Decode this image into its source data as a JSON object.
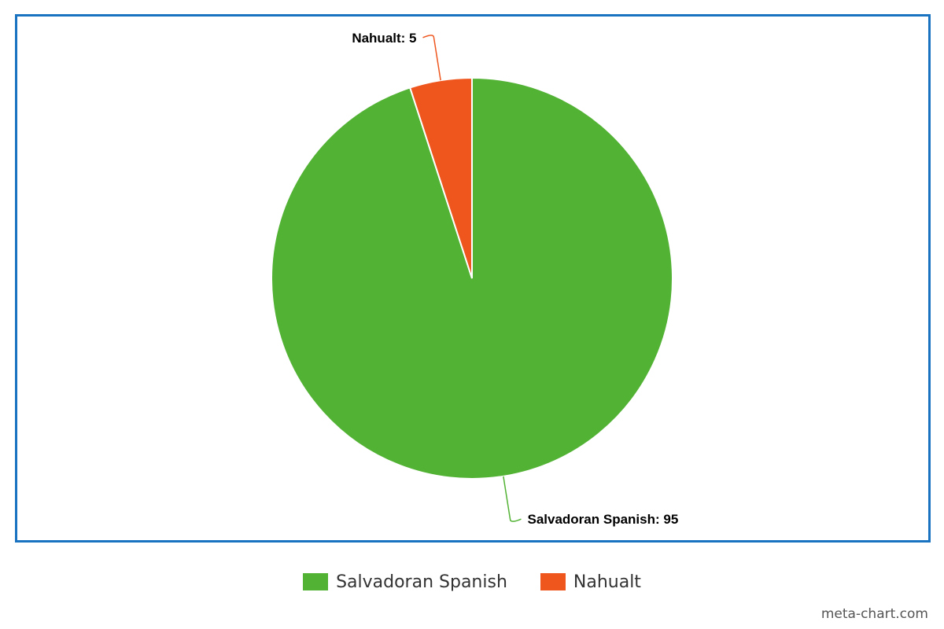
{
  "chart_data": {
    "type": "pie",
    "categories": [
      "Salvadoran Spanish",
      "Nahualt"
    ],
    "values": [
      95,
      5
    ],
    "colors": [
      "#52b234",
      "#ee561e"
    ],
    "data_labels": [
      "Salvadoran Spanish: 95",
      "Nahualt: 5"
    ],
    "legend": {
      "placement": "bottom-center",
      "entries": [
        "Salvadoran Spanish",
        "Nahualt"
      ]
    }
  },
  "watermark": "meta-chart.com"
}
